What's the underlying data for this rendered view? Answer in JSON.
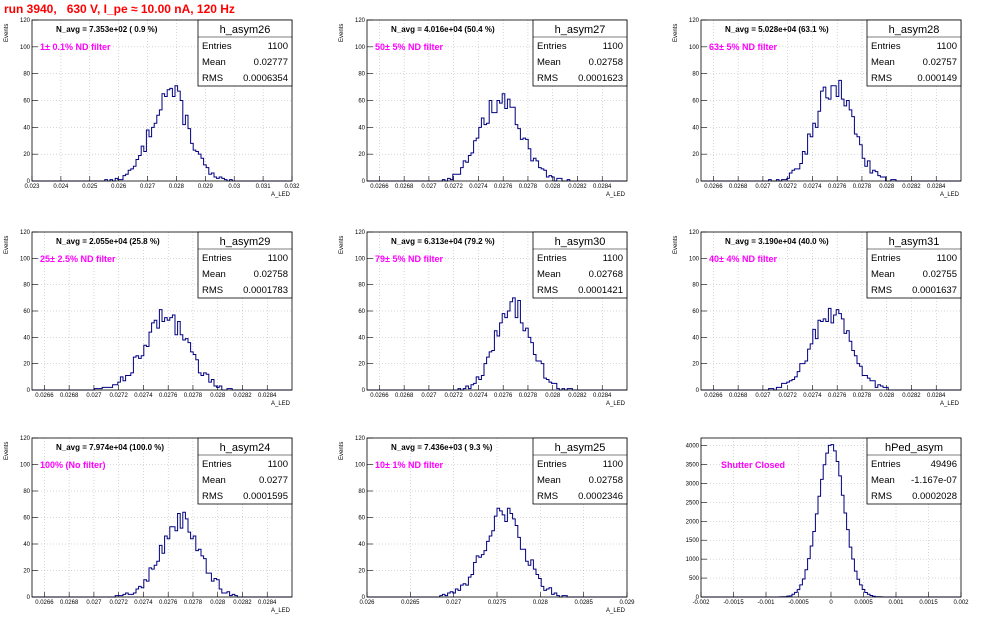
{
  "header": {
    "title": "run 3940,   630 V, I_pe ≈ 10.00 nA, 120 Hz"
  },
  "colors": {
    "title": "#ff0000",
    "histogram": "#000080",
    "filter_text": "#ff00ff",
    "grid": "#b0b0b0"
  },
  "stats_labels": {
    "entries": "Entries",
    "mean": "Mean",
    "rms": "RMS"
  },
  "chart_data": [
    {
      "type": "histogram",
      "name": "h_asym26",
      "navg": "N_avg = 7.353e+02 ( 0.9 %)",
      "filter": "1± 0.1% ND filter",
      "entries": "1100",
      "mean": "0.02777",
      "rms": "0.0006354",
      "xlabel": "A_LED",
      "ylabel": "Events",
      "xlim": [
        0.023,
        0.032
      ],
      "ylim": [
        0,
        120
      ],
      "xticks": [
        "0.023",
        "0.024",
        "0.025",
        "0.026",
        "0.027",
        "0.028",
        "0.029",
        "0.03",
        "0.031",
        "0.032"
      ],
      "yticks": [
        "0",
        "20",
        "40",
        "60",
        "80",
        "100",
        "120"
      ],
      "grid": true,
      "stats_position": "top-right",
      "center": 0.02777,
      "sigma": 0.0006354,
      "peak": 67
    },
    {
      "type": "histogram",
      "name": "h_asym27",
      "navg": "N_avg = 4.016e+04 (50.4 %)",
      "filter": "50± 5% ND filter",
      "entries": "1100",
      "mean": "0.02758",
      "rms": "0.0001623",
      "xlabel": "A_LED",
      "ylabel": "Events",
      "xlim": [
        0.0265,
        0.0286
      ],
      "ylim": [
        0,
        120
      ],
      "xticks": [
        "0.0266",
        "0.0268",
        "0.027",
        "0.0272",
        "0.0274",
        "0.0276",
        "0.0278",
        "0.028",
        "0.0282",
        "0.0284"
      ],
      "yticks": [
        "0",
        "20",
        "40",
        "60",
        "80",
        "100",
        "120"
      ],
      "grid": true,
      "stats_position": "top-right",
      "center": 0.02758,
      "sigma": 0.0001623,
      "peak": 60
    },
    {
      "type": "histogram",
      "name": "h_asym28",
      "navg": "N_avg = 5.028e+04 (63.1 %)",
      "filter": "63± 5% ND filter",
      "entries": "1100",
      "mean": "0.02757",
      "rms": "0.000149",
      "xlabel": "A_LED",
      "ylabel": "Events",
      "xlim": [
        0.0265,
        0.0286
      ],
      "ylim": [
        0,
        120
      ],
      "xticks": [
        "0.0266",
        "0.0268",
        "0.027",
        "0.0272",
        "0.0274",
        "0.0276",
        "0.0278",
        "0.028",
        "0.0282",
        "0.0284"
      ],
      "yticks": [
        "0",
        "20",
        "40",
        "60",
        "80",
        "100",
        "120"
      ],
      "grid": true,
      "stats_position": "top-right",
      "center": 0.02757,
      "sigma": 0.000149,
      "peak": 72
    },
    {
      "type": "histogram",
      "name": "h_asym29",
      "navg": "N_avg = 2.055e+04 (25.8 %)",
      "filter": "25± 2.5% ND filter",
      "entries": "1100",
      "mean": "0.02758",
      "rms": "0.0001783",
      "xlabel": "A_LED",
      "ylabel": "Events",
      "xlim": [
        0.0265,
        0.0286
      ],
      "ylim": [
        0,
        120
      ],
      "xticks": [
        "0.0266",
        "0.0268",
        "0.027",
        "0.0272",
        "0.0274",
        "0.0276",
        "0.0278",
        "0.028",
        "0.0282",
        "0.0284"
      ],
      "yticks": [
        "0",
        "20",
        "40",
        "60",
        "80",
        "100",
        "120"
      ],
      "grid": true,
      "stats_position": "top-right",
      "center": 0.02758,
      "sigma": 0.0001783,
      "peak": 55
    },
    {
      "type": "histogram",
      "name": "h_asym30",
      "navg": "N_avg = 6.313e+04 (79.2 %)",
      "filter": "79± 5% ND filter",
      "entries": "1100",
      "mean": "0.02768",
      "rms": "0.0001421",
      "xlabel": "A_LED",
      "ylabel": "Events",
      "xlim": [
        0.0265,
        0.0286
      ],
      "ylim": [
        0,
        120
      ],
      "xticks": [
        "0.0266",
        "0.0268",
        "0.027",
        "0.0272",
        "0.0274",
        "0.0276",
        "0.0278",
        "0.028",
        "0.0282",
        "0.0284"
      ],
      "yticks": [
        "0",
        "20",
        "40",
        "60",
        "80",
        "100",
        "120"
      ],
      "grid": true,
      "stats_position": "top-right",
      "center": 0.02768,
      "sigma": 0.0001421,
      "peak": 64
    },
    {
      "type": "histogram",
      "name": "h_asym31",
      "navg": "N_avg = 3.190e+04 (40.0 %)",
      "filter": "40± 4% ND filter",
      "entries": "1100",
      "mean": "0.02755",
      "rms": "0.0001637",
      "xlabel": "A_LED",
      "ylabel": "Events",
      "xlim": [
        0.0265,
        0.0286
      ],
      "ylim": [
        0,
        120
      ],
      "xticks": [
        "0.0266",
        "0.0268",
        "0.027",
        "0.0272",
        "0.0274",
        "0.0276",
        "0.0278",
        "0.028",
        "0.0282",
        "0.0284"
      ],
      "yticks": [
        "0",
        "20",
        "40",
        "60",
        "80",
        "100",
        "120"
      ],
      "grid": true,
      "stats_position": "top-right",
      "center": 0.02755,
      "sigma": 0.0001637,
      "peak": 57
    },
    {
      "type": "histogram",
      "name": "h_asym24",
      "navg": "N_avg = 7.974e+04 (100.0 %)",
      "filter": "100% (No filter)",
      "entries": "1100",
      "mean": "0.0277",
      "rms": "0.0001595",
      "xlabel": "A_LED",
      "ylabel": "Events",
      "xlim": [
        0.0265,
        0.0286
      ],
      "ylim": [
        0,
        120
      ],
      "xticks": [
        "0.0266",
        "0.0268",
        "0.027",
        "0.0272",
        "0.0274",
        "0.0276",
        "0.0278",
        "0.028",
        "0.0282",
        "0.0284"
      ],
      "yticks": [
        "0",
        "20",
        "40",
        "60",
        "80",
        "100",
        "120"
      ],
      "grid": true,
      "stats_position": "top-right",
      "center": 0.0277,
      "sigma": 0.0001595,
      "peak": 58
    },
    {
      "type": "histogram",
      "name": "h_asym25",
      "navg": "N_avg = 7.436e+03 ( 9.3 %)",
      "filter": "10± 1% ND filter",
      "entries": "1100",
      "mean": "0.02758",
      "rms": "0.0002346",
      "xlabel": "A_LED",
      "ylabel": "Events",
      "xlim": [
        0.026,
        0.029
      ],
      "ylim": [
        0,
        120
      ],
      "xticks": [
        "0.026",
        "0.0265",
        "0.027",
        "0.0275",
        "0.028",
        "0.0285",
        "0.029"
      ],
      "yticks": [
        "0",
        "20",
        "40",
        "60",
        "80",
        "100",
        "120"
      ],
      "grid": true,
      "stats_position": "top-right",
      "center": 0.02758,
      "sigma": 0.0002346,
      "peak": 62
    },
    {
      "type": "histogram",
      "name": "hPed_asym",
      "navg": "",
      "filter": "Shutter Closed",
      "entries": "49496",
      "mean": "-1.167e-07",
      "rms": "0.0002028",
      "xlabel": "",
      "ylabel": "",
      "xlim": [
        -0.002,
        0.002
      ],
      "ylim": [
        0,
        4200
      ],
      "xticks": [
        "-0.002",
        "-0.0015",
        "-0.001",
        "-0.0005",
        "0",
        "0.0005",
        "0.001",
        "0.0015",
        "0.002"
      ],
      "yticks": [
        "0",
        "500",
        "1000",
        "1500",
        "2000",
        "2500",
        "3000",
        "3500",
        "4000"
      ],
      "grid": true,
      "stats_position": "top-right",
      "center": 0.0,
      "sigma": 0.0002028,
      "peak": 4000
    }
  ]
}
